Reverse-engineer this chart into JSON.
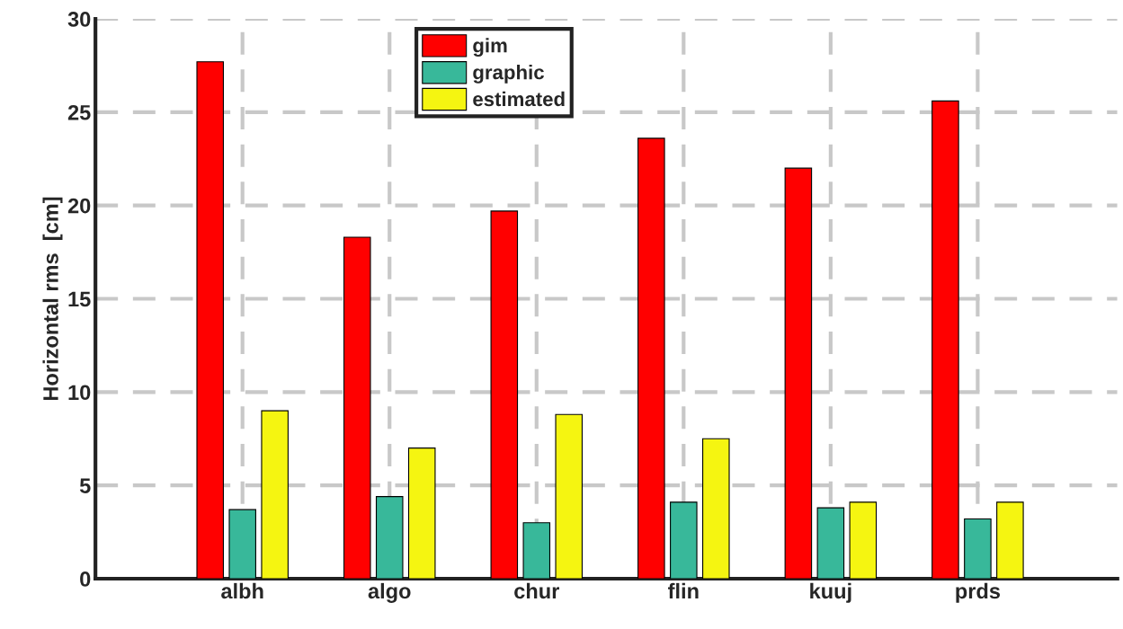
{
  "chart_data": {
    "type": "bar",
    "ylabel": "Horizontal rms  [cm]",
    "categories": [
      "albh",
      "algo",
      "chur",
      "flin",
      "kuuj",
      "prds"
    ],
    "series": [
      {
        "name": "gim",
        "color": "#ff0000",
        "values": [
          27.7,
          18.3,
          19.7,
          23.6,
          22.0,
          25.6
        ]
      },
      {
        "name": "graphic",
        "color": "#38b89a",
        "values": [
          3.7,
          4.4,
          3.0,
          4.1,
          3.8,
          3.2
        ]
      },
      {
        "name": "estimated",
        "color": "#f5f511",
        "values": [
          9.0,
          7.0,
          8.8,
          7.5,
          4.1,
          4.1
        ]
      }
    ],
    "ylim": [
      0,
      30
    ],
    "yticks": [
      0,
      5,
      10,
      15,
      20,
      25,
      30
    ],
    "grid": true,
    "legend": "top"
  }
}
